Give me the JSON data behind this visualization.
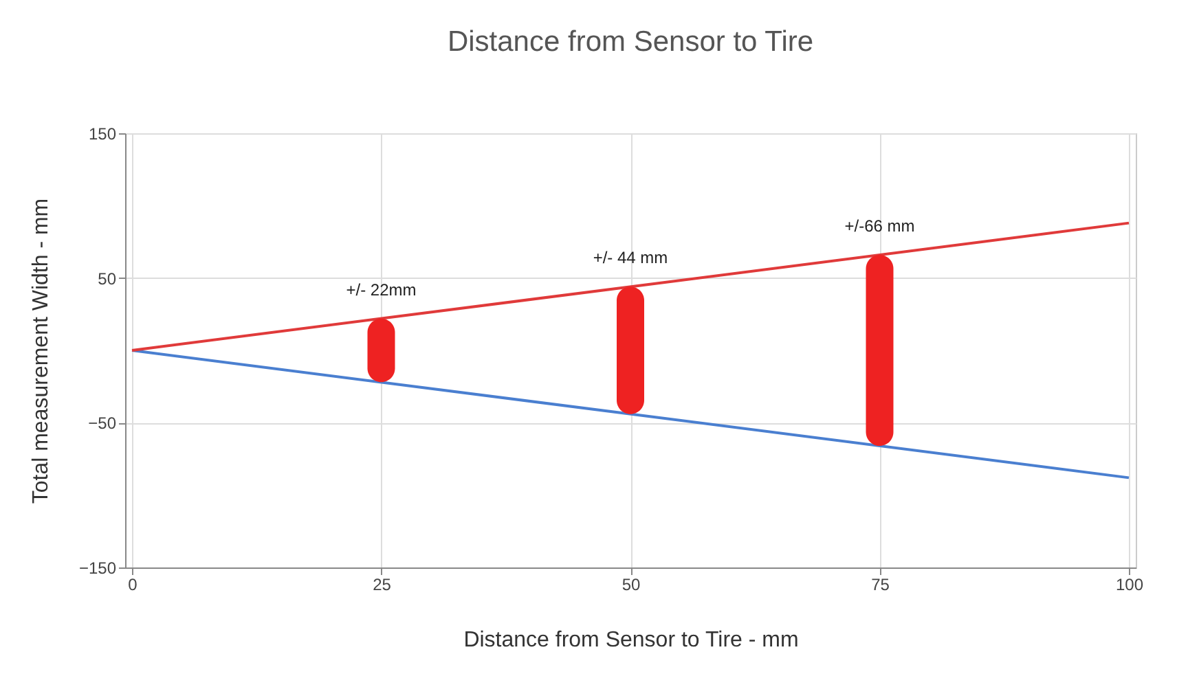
{
  "chart_data": {
    "type": "line",
    "title": "Distance from Sensor to Tire",
    "xlabel": "Distance from Sensor to Tire - mm",
    "ylabel": "Total measurement Width - mm",
    "x": [
      0,
      100
    ],
    "series": [
      {
        "color": "#4a7fd0",
        "values": [
          0,
          -88
        ]
      },
      {
        "color": "#e03a3a",
        "values": [
          0,
          88
        ]
      },
      {
        "type": "bar",
        "color": "#ee2222",
        "x": [
          25,
          50,
          75
        ],
        "base": [
          -22,
          -44,
          -66
        ],
        "values": [
          44,
          88,
          132
        ]
      }
    ],
    "xlim": [
      0,
      100
    ],
    "xticks": [
      0,
      25,
      50,
      75,
      100
    ],
    "ylim": [
      -150,
      150
    ],
    "yticks": [
      -150,
      -50,
      50,
      150
    ],
    "grid": true,
    "annotations": [
      {
        "text": "+/- 22mm",
        "x": 25,
        "y": 22
      },
      {
        "text": "+/- 44 mm",
        "x": 50,
        "y": 44
      },
      {
        "text": "+/-66 mm",
        "x": 75,
        "y": 66
      }
    ]
  }
}
